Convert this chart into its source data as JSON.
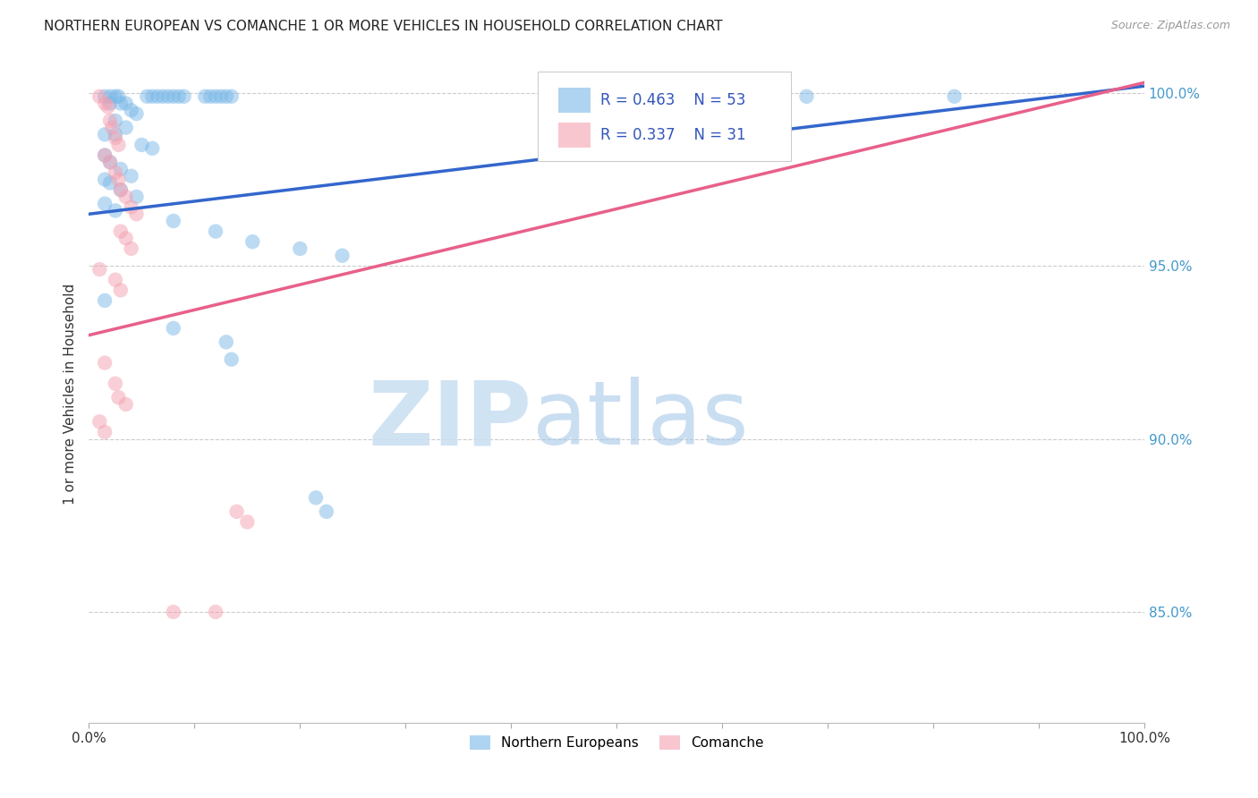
{
  "title": "NORTHERN EUROPEAN VS COMANCHE 1 OR MORE VEHICLES IN HOUSEHOLD CORRELATION CHART",
  "source": "Source: ZipAtlas.com",
  "ylabel": "1 or more Vehicles in Household",
  "xlim": [
    0.0,
    1.0
  ],
  "ylim": [
    0.818,
    1.008
  ],
  "yticks": [
    0.85,
    0.9,
    0.95,
    1.0
  ],
  "ytick_labels": [
    "85.0%",
    "90.0%",
    "95.0%",
    "100.0%"
  ],
  "xticks": [
    0.0,
    0.1,
    0.2,
    0.3,
    0.4,
    0.5,
    0.6,
    0.7,
    0.8,
    0.9,
    1.0
  ],
  "xtick_labels": [
    "0.0%",
    "",
    "",
    "",
    "",
    "",
    "",
    "",
    "",
    "",
    "100.0%"
  ],
  "blue_R": 0.463,
  "blue_N": 53,
  "pink_R": 0.337,
  "pink_N": 31,
  "blue_color": "#7ab8e8",
  "pink_color": "#f4a0b0",
  "blue_line_color": "#3366cc",
  "pink_line_color": "#e8608a",
  "legend_blue_label": "Northern Europeans",
  "legend_pink_label": "Comanche",
  "watermark_zip": "ZIP",
  "watermark_atlas": "atlas",
  "blue_line": [
    [
      0.0,
      0.965
    ],
    [
      1.0,
      1.002
    ]
  ],
  "pink_line": [
    [
      0.0,
      0.93
    ],
    [
      1.0,
      1.003
    ]
  ],
  "blue_points": [
    [
      0.015,
      0.999
    ],
    [
      0.02,
      0.999
    ],
    [
      0.025,
      0.999
    ],
    [
      0.028,
      0.999
    ],
    [
      0.055,
      0.999
    ],
    [
      0.06,
      0.999
    ],
    [
      0.065,
      0.999
    ],
    [
      0.07,
      0.999
    ],
    [
      0.075,
      0.999
    ],
    [
      0.08,
      0.999
    ],
    [
      0.085,
      0.999
    ],
    [
      0.09,
      0.999
    ],
    [
      0.11,
      0.999
    ],
    [
      0.115,
      0.999
    ],
    [
      0.12,
      0.999
    ],
    [
      0.125,
      0.999
    ],
    [
      0.13,
      0.999
    ],
    [
      0.135,
      0.999
    ],
    [
      0.02,
      0.997
    ],
    [
      0.03,
      0.997
    ],
    [
      0.035,
      0.997
    ],
    [
      0.04,
      0.995
    ],
    [
      0.045,
      0.994
    ],
    [
      0.025,
      0.992
    ],
    [
      0.035,
      0.99
    ],
    [
      0.015,
      0.988
    ],
    [
      0.025,
      0.988
    ],
    [
      0.05,
      0.985
    ],
    [
      0.06,
      0.984
    ],
    [
      0.015,
      0.982
    ],
    [
      0.02,
      0.98
    ],
    [
      0.03,
      0.978
    ],
    [
      0.04,
      0.976
    ],
    [
      0.015,
      0.975
    ],
    [
      0.02,
      0.974
    ],
    [
      0.03,
      0.972
    ],
    [
      0.045,
      0.97
    ],
    [
      0.015,
      0.968
    ],
    [
      0.025,
      0.966
    ],
    [
      0.08,
      0.963
    ],
    [
      0.12,
      0.96
    ],
    [
      0.155,
      0.957
    ],
    [
      0.2,
      0.955
    ],
    [
      0.24,
      0.953
    ],
    [
      0.64,
      0.999
    ],
    [
      0.68,
      0.999
    ],
    [
      0.82,
      0.999
    ],
    [
      0.015,
      0.94
    ],
    [
      0.08,
      0.932
    ],
    [
      0.13,
      0.928
    ],
    [
      0.135,
      0.923
    ],
    [
      0.215,
      0.883
    ],
    [
      0.225,
      0.879
    ]
  ],
  "pink_points": [
    [
      0.01,
      0.999
    ],
    [
      0.015,
      0.997
    ],
    [
      0.018,
      0.996
    ],
    [
      0.02,
      0.992
    ],
    [
      0.022,
      0.99
    ],
    [
      0.025,
      0.987
    ],
    [
      0.028,
      0.985
    ],
    [
      0.015,
      0.982
    ],
    [
      0.02,
      0.98
    ],
    [
      0.025,
      0.977
    ],
    [
      0.028,
      0.975
    ],
    [
      0.03,
      0.972
    ],
    [
      0.035,
      0.97
    ],
    [
      0.04,
      0.967
    ],
    [
      0.045,
      0.965
    ],
    [
      0.03,
      0.96
    ],
    [
      0.035,
      0.958
    ],
    [
      0.04,
      0.955
    ],
    [
      0.01,
      0.949
    ],
    [
      0.025,
      0.946
    ],
    [
      0.03,
      0.943
    ],
    [
      0.015,
      0.922
    ],
    [
      0.025,
      0.916
    ],
    [
      0.028,
      0.912
    ],
    [
      0.035,
      0.91
    ],
    [
      0.01,
      0.905
    ],
    [
      0.015,
      0.902
    ],
    [
      0.14,
      0.879
    ],
    [
      0.15,
      0.876
    ],
    [
      0.08,
      0.85
    ],
    [
      0.12,
      0.85
    ]
  ]
}
